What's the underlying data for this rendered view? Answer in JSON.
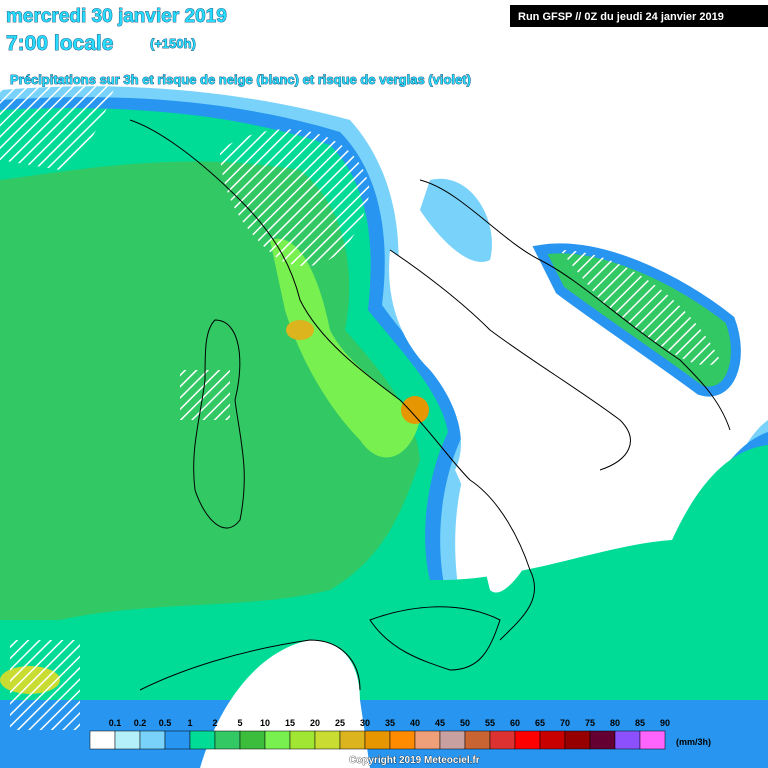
{
  "header": {
    "date": "mercredi 30 janvier 2019",
    "time": "7:00 locale",
    "offset": "(+150h)",
    "subtitle": "Précipitations sur 3h et risque de neige (blanc) et risque de verglas (violet)",
    "run": "Run GFSP // 0Z du jeudi 24 janvier 2019"
  },
  "legend": {
    "ticks": [
      "0.1",
      "0.2",
      "0.5",
      "1",
      "2",
      "5",
      "10",
      "15",
      "20",
      "25",
      "30",
      "35",
      "40",
      "45",
      "50",
      "55",
      "60",
      "65",
      "70",
      "75",
      "80",
      "85",
      "90"
    ],
    "colors": [
      "#ffffff",
      "#b4f0fa",
      "#78d2fa",
      "#2896f0",
      "#00dc96",
      "#32c864",
      "#3cbe3c",
      "#78f050",
      "#a0e632",
      "#c8dc32",
      "#dcb41e",
      "#e69600",
      "#ff8c00",
      "#f0a078",
      "#c8a0a0",
      "#c86432",
      "#dc3232",
      "#ff0000",
      "#c80000",
      "#960000",
      "#640032",
      "#8c50ff",
      "#ff64ff"
    ],
    "unit": "(mm/3h)"
  },
  "footer": {
    "copyright": "Copyright 2019 Meteociel.fr"
  }
}
